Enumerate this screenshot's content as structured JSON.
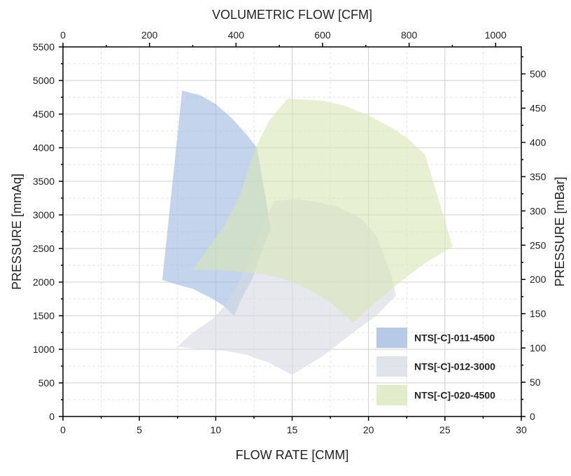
{
  "chart_data": {
    "type": "area",
    "title": "",
    "xlabel": "FLOW RATE [CMM]",
    "ylabel": "PRESSURE [mmAq]",
    "x2label": "VOLUMETRIC FLOW [CFM]",
    "y2label": "PRESSURE [mBar]",
    "xlim": [
      0,
      30
    ],
    "ylim": [
      0,
      5500
    ],
    "x2lim": [
      0,
      1059.4
    ],
    "y2lim": [
      0,
      539.4
    ],
    "xticks": [
      0,
      5,
      10,
      15,
      20,
      25,
      30
    ],
    "yticks": [
      0,
      500,
      1000,
      1500,
      2000,
      2500,
      3000,
      3500,
      4000,
      4500,
      5000,
      5500
    ],
    "x2ticks": [
      0,
      200,
      400,
      600,
      800,
      1000
    ],
    "y2ticks": [
      0,
      50,
      100,
      150,
      200,
      250,
      300,
      350,
      400,
      450,
      500
    ],
    "grid": true,
    "legend_position": "bottom-right",
    "series": [
      {
        "name": "NTS[-C]-011-4500",
        "color": "#9db8df",
        "polygon": [
          [
            7.8,
            4850
          ],
          [
            9.0,
            4780
          ],
          [
            10.0,
            4650
          ],
          [
            11.0,
            4450
          ],
          [
            12.0,
            4200
          ],
          [
            12.7,
            4000
          ],
          [
            13.0,
            3600
          ],
          [
            13.3,
            3200
          ],
          [
            13.6,
            2800
          ],
          [
            13.0,
            2450
          ],
          [
            12.4,
            2050
          ],
          [
            11.8,
            1800
          ],
          [
            11.2,
            1500
          ],
          [
            10.5,
            1650
          ],
          [
            9.8,
            1750
          ],
          [
            8.5,
            1900
          ],
          [
            7.5,
            1960
          ],
          [
            6.5,
            2030
          ]
        ]
      },
      {
        "name": "NTS[-C]-012-3000",
        "color": "#d6d9e3",
        "polygon": [
          [
            13.8,
            3200
          ],
          [
            15.0,
            3240
          ],
          [
            16.5,
            3200
          ],
          [
            18.0,
            3120
          ],
          [
            19.5,
            2950
          ],
          [
            20.5,
            2700
          ],
          [
            21.0,
            2400
          ],
          [
            21.5,
            2100
          ],
          [
            21.8,
            1800
          ],
          [
            20.5,
            1500
          ],
          [
            19.0,
            1250
          ],
          [
            17.0,
            900
          ],
          [
            15.0,
            620
          ],
          [
            13.5,
            800
          ],
          [
            12.0,
            920
          ],
          [
            10.5,
            980
          ],
          [
            9.0,
            1000
          ],
          [
            7.5,
            1040
          ],
          [
            8.5,
            1250
          ],
          [
            9.8,
            1450
          ],
          [
            10.6,
            1650
          ],
          [
            11.5,
            2000
          ],
          [
            12.5,
            2500
          ],
          [
            13.2,
            2900
          ]
        ]
      },
      {
        "name": "NTS[-C]-020-4500",
        "color": "#d8e6b8",
        "polygon": [
          [
            14.7,
            4730
          ],
          [
            17.0,
            4700
          ],
          [
            18.5,
            4620
          ],
          [
            20.0,
            4480
          ],
          [
            21.5,
            4300
          ],
          [
            22.5,
            4150
          ],
          [
            23.7,
            3900
          ],
          [
            24.5,
            3300
          ],
          [
            25.5,
            2530
          ],
          [
            23.5,
            2250
          ],
          [
            21.5,
            1900
          ],
          [
            20.5,
            1700
          ],
          [
            19.0,
            1400
          ],
          [
            17.5,
            1700
          ],
          [
            16.0,
            1900
          ],
          [
            14.5,
            2050
          ],
          [
            13.0,
            2120
          ],
          [
            11.5,
            2160
          ],
          [
            10.0,
            2180
          ],
          [
            8.5,
            2180
          ],
          [
            9.5,
            2500
          ],
          [
            10.6,
            2850
          ],
          [
            11.6,
            3300
          ],
          [
            12.6,
            4000
          ],
          [
            13.5,
            4400
          ]
        ]
      }
    ]
  }
}
